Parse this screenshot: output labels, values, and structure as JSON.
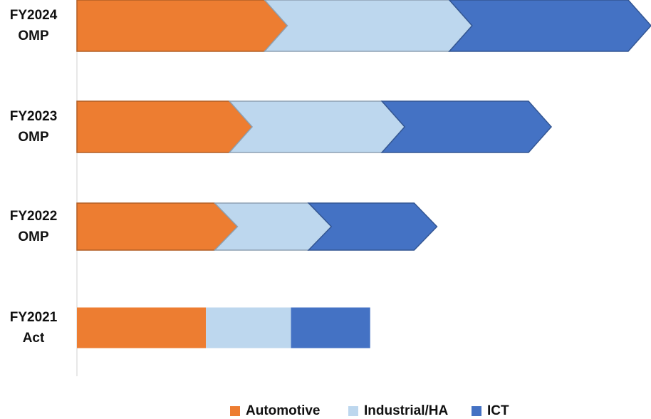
{
  "chart_data": {
    "type": "chevron_stacked_bar",
    "categories": [
      "FY2024 OMP",
      "FY2023 OMP",
      "FY2022 OMP",
      "FY2021 Act"
    ],
    "chevron": [
      true,
      true,
      true,
      false
    ],
    "series": [
      {
        "name": "Automotive",
        "color": "#ED7D31",
        "values": [
          64,
          52,
          47,
          44
        ]
      },
      {
        "name": "Industrial/HA",
        "color": "#BDD7EE",
        "values": [
          63,
          52,
          32,
          29
        ]
      },
      {
        "name": "ICT",
        "color": "#4472C4",
        "values": [
          61,
          50,
          36,
          27
        ]
      }
    ],
    "legend": "bottom"
  }
}
